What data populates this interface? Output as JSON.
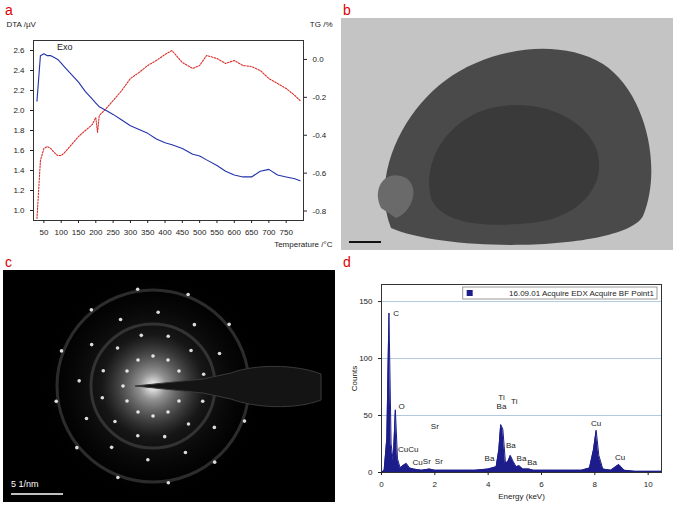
{
  "chart_data": [
    {
      "letter": "a",
      "type": "line",
      "x_label": "Temperature /°C",
      "y_label": "DTA /µV",
      "y2_label": "TG /%",
      "xlim": [
        20,
        800
      ],
      "xticks": [
        50,
        100,
        150,
        200,
        250,
        300,
        350,
        400,
        450,
        500,
        550,
        600,
        650,
        700,
        750
      ],
      "ylim": [
        0.9,
        2.7
      ],
      "yticks": [
        {
          "value": 1,
          "label": "1.0"
        },
        1.2,
        1.4,
        1.6,
        1.8,
        {
          "value": 2,
          "label": "2.0"
        },
        2.2,
        2.4,
        2.6
      ],
      "y2lim": [
        -0.85,
        0.1
      ],
      "y2ticks": [
        {
          "value": 0,
          "label": "0.0"
        },
        -0.2,
        -0.4,
        -0.6,
        -0.8
      ],
      "annotations": [
        {
          "text": "Exo",
          "x": 110,
          "y": 2.63
        }
      ],
      "x": [
        30,
        40,
        50,
        60,
        70,
        80,
        90,
        100,
        110,
        130,
        150,
        170,
        190,
        200,
        205,
        210,
        230,
        250,
        275,
        300,
        325,
        350,
        375,
        400,
        420,
        450,
        480,
        500,
        520,
        550,
        575,
        600,
        625,
        650,
        675,
        700,
        725,
        750,
        775,
        790
      ],
      "series": [
        {
          "color": "#d9302c",
          "line_style": "dotted",
          "values": [
            0.92,
            1.5,
            1.62,
            1.64,
            1.62,
            1.58,
            1.55,
            1.55,
            1.58,
            1.66,
            1.74,
            1.8,
            1.86,
            1.93,
            1.78,
            1.95,
            2.02,
            2.1,
            2.2,
            2.32,
            2.38,
            2.45,
            2.5,
            2.56,
            2.6,
            2.48,
            2.42,
            2.45,
            2.55,
            2.52,
            2.47,
            2.5,
            2.45,
            2.44,
            2.4,
            2.32,
            2.27,
            2.22,
            2.15,
            2.1
          ]
        },
        {
          "color": "#2233aa",
          "line_style": "solid",
          "axis": "y2",
          "values": [
            -0.22,
            0.02,
            0.03,
            0.02,
            0.02,
            0.01,
            0,
            -0.02,
            -0.04,
            -0.08,
            -0.12,
            -0.17,
            -0.21,
            -0.23,
            -0.24,
            -0.25,
            -0.27,
            -0.29,
            -0.32,
            -0.35,
            -0.37,
            -0.39,
            -0.42,
            -0.44,
            -0.45,
            -0.47,
            -0.5,
            -0.51,
            -0.53,
            -0.56,
            -0.59,
            -0.61,
            -0.62,
            -0.62,
            -0.59,
            -0.58,
            -0.61,
            -0.62,
            -0.63,
            -0.64
          ]
        }
      ]
    },
    {
      "letter": "d",
      "type": "area",
      "x_label": "Energy (keV)",
      "y_label": "Counts",
      "xlim": [
        0,
        10.5
      ],
      "xticks": [
        0,
        2,
        4,
        6,
        8,
        10
      ],
      "ylim": [
        0,
        165
      ],
      "yticks": [
        0,
        50,
        100,
        150
      ],
      "grid": true,
      "legend": "top-right",
      "x": [
        0,
        0.1,
        0.2,
        0.28,
        0.36,
        0.44,
        0.52,
        0.6,
        0.7,
        0.8,
        0.93,
        1.05,
        1.2,
        1.5,
        1.8,
        2.0,
        2.5,
        3.0,
        3.5,
        4.0,
        4.3,
        4.4,
        4.47,
        4.55,
        4.65,
        4.75,
        4.83,
        4.93,
        5.05,
        5.16,
        5.3,
        5.53,
        5.7,
        6.0,
        6.5,
        7.0,
        7.5,
        7.8,
        7.95,
        8.05,
        8.15,
        8.3,
        8.6,
        8.9,
        9.1,
        9.5,
        10.0,
        10.5
      ],
      "series": [
        {
          "name": "16.09.01 Acquire EDX Acquire BF Point1",
          "color": "#1c1c8a",
          "values": [
            0,
            2,
            30,
            140,
            25,
            10,
            55,
            12,
            4,
            6,
            8,
            4,
            3,
            2,
            3,
            2,
            2,
            2,
            2,
            3,
            5,
            20,
            42,
            38,
            8,
            10,
            15,
            10,
            5,
            6,
            3,
            3,
            2,
            2,
            2,
            2,
            2,
            4,
            20,
            37,
            15,
            3,
            2,
            7,
            2,
            1,
            1,
            1
          ]
        }
      ],
      "annotations": [
        {
          "text": "C",
          "x": 0.55,
          "y": 140
        },
        {
          "text": "O",
          "x": 0.75,
          "y": 58
        },
        {
          "text": "CuCu",
          "x": 1.0,
          "y": 20
        },
        {
          "text": "Cu",
          "x": 1.35,
          "y": 9
        },
        {
          "text": "Sr",
          "x": 2.0,
          "y": 40
        },
        {
          "text": "Sr",
          "x": 1.7,
          "y": 10
        },
        {
          "text": "Sr",
          "x": 2.15,
          "y": 10
        },
        {
          "text": "Ti",
          "x": 4.5,
          "y": 66
        },
        {
          "text": "Ba",
          "x": 4.5,
          "y": 58
        },
        {
          "text": "Ti",
          "x": 4.98,
          "y": 62
        },
        {
          "text": "Ba",
          "x": 4.05,
          "y": 12
        },
        {
          "text": "Ba",
          "x": 4.85,
          "y": 24
        },
        {
          "text": "Ba",
          "x": 5.25,
          "y": 12
        },
        {
          "text": "Ba",
          "x": 5.65,
          "y": 9
        },
        {
          "text": "Cu",
          "x": 8.05,
          "y": 43
        },
        {
          "text": "Cu",
          "x": 8.95,
          "y": 13
        }
      ]
    }
  ],
  "images": [
    {
      "letter": "b"
    },
    {
      "letter": "c",
      "scale_bar": "5 1/nm"
    }
  ]
}
